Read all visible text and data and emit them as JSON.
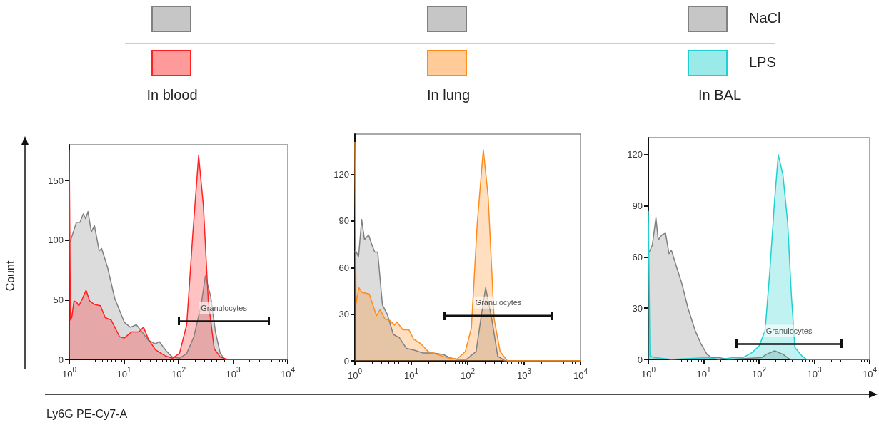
{
  "chart_data": [
    {
      "type": "area",
      "title": "In blood",
      "ylabel": "Count",
      "xlabel": "Ly6G PE-Cy7-A",
      "log": "x",
      "marker": "none",
      "legend": "top",
      "xlim": [
        1,
        10000
      ],
      "xticks": [
        {
          "value": 1,
          "label": "10$^{0}$"
        },
        {
          "value": 10,
          "label": "10$^{1}$"
        },
        {
          "value": 100,
          "label": "10$^{2}$"
        },
        {
          "value": 1000,
          "label": "10$^{3}$"
        },
        {
          "value": 10000,
          "label": "10$^{4}$"
        }
      ],
      "ylim": [
        0,
        180
      ],
      "yticks": [
        0,
        50,
        100,
        150
      ],
      "annotations": [
        "Granulocytes"
      ],
      "series": [
        {
          "color": "#808080",
          "x": [
            1,
            1.08,
            1.35,
            1.57,
            1.8,
            1.99,
            2.2,
            2.53,
            2.89,
            3.53,
            3.91,
            5.03,
            6.81,
            10.2,
            13.1,
            16.9,
            20.7,
            28,
            37.9,
            44.1,
            59.7,
            76.9,
            104,
            141,
            191,
            258,
            310,
            387,
            474,
            580,
            709,
            10000
          ],
          "values": [
            98,
            101,
            115,
            115,
            122,
            118,
            124,
            107,
            112,
            91,
            93,
            77,
            51,
            31,
            27,
            29,
            24,
            16,
            13,
            15,
            7,
            2,
            1,
            5,
            19,
            45,
            70,
            53,
            23,
            5,
            0,
            0
          ]
        },
        {
          "type": "line",
          "color": "#111111",
          "x": [
            102,
            4500
          ],
          "values": [
            32,
            32
          ]
        },
        {
          "color": "#ff2020",
          "x": [
            1,
            1.05,
            1.11,
            1.22,
            1.35,
            1.5,
            1.74,
            2.03,
            2.36,
            2.89,
            3.71,
            4.55,
            5.85,
            8.33,
            10.2,
            13.8,
            18.7,
            22.9,
            28,
            37.9,
            56.9,
            76.9,
            104,
            141,
            181,
            233,
            285,
            350,
            450,
            580,
            785,
            10000
          ],
          "values": [
            176,
            33,
            35,
            49,
            48,
            45,
            51,
            58,
            49,
            46,
            45,
            35,
            33,
            19,
            18,
            23,
            23,
            27,
            17,
            8,
            3,
            1,
            5,
            29,
            103,
            171,
            129,
            49,
            9,
            2,
            0,
            0
          ]
        }
      ]
    },
    {
      "type": "area",
      "title": "In lung",
      "log": "x",
      "marker": "none",
      "legend": "top",
      "xlim": [
        1,
        10000
      ],
      "xticks": [
        {
          "value": 1,
          "label": "10$^{0}$"
        },
        {
          "value": 10,
          "label": "10$^{1}$"
        },
        {
          "value": 100,
          "label": "10$^{2}$"
        },
        {
          "value": 1000,
          "label": "10$^{3}$"
        },
        {
          "value": 10000,
          "label": "10$^{4}$"
        }
      ],
      "ylim": [
        0,
        146
      ],
      "yticks": [
        0,
        30,
        60,
        90,
        120
      ],
      "annotations": [
        "Granulocytes"
      ],
      "series": [
        {
          "color": "#808080",
          "x": [
            1,
            1.03,
            1.16,
            1.32,
            1.48,
            1.75,
            1.99,
            2.25,
            2.54,
            3.08,
            3.75,
            4.8,
            6.12,
            8.22,
            11,
            16.3,
            24.2,
            37.5,
            48,
            64.4,
            95.2,
            141,
            171,
            208,
            267,
            340,
            457,
            10000
          ],
          "values": [
            70,
            71,
            67,
            91,
            78,
            81,
            75,
            70,
            70,
            36,
            30,
            17,
            15,
            8,
            7,
            5,
            5,
            4,
            2,
            1,
            1,
            6,
            27,
            47,
            27,
            3,
            0,
            0
          ]
        },
        {
          "type": "line",
          "color": "#111111",
          "x": [
            39,
            3150
          ],
          "values": [
            29,
            29
          ]
        },
        {
          "color": "#ff8c1a",
          "x": [
            1,
            1.05,
            1.18,
            1.34,
            1.8,
            2.08,
            2.41,
            2.8,
            3.4,
            4.14,
            5.03,
            5.56,
            7.1,
            9.06,
            11,
            14.8,
            19.9,
            29.4,
            43.5,
            64.4,
            90.6,
            116,
            148,
            189,
            230,
            294,
            375,
            504,
            10000
          ],
          "values": [
            141,
            37,
            47,
            44,
            43,
            36,
            29,
            33,
            27,
            26,
            23,
            25,
            20,
            20,
            14,
            11,
            6,
            4,
            2,
            1,
            6,
            21,
            89,
            136,
            106,
            27,
            6,
            0,
            0
          ]
        }
      ]
    },
    {
      "type": "area",
      "title": "In BAL",
      "log": "x",
      "marker": "none",
      "legend": "top",
      "xlim": [
        1,
        10000
      ],
      "xticks": [
        {
          "value": 1,
          "label": "10$^{0}$"
        },
        {
          "value": 10,
          "label": "10$^{1}$"
        },
        {
          "value": 100,
          "label": "10$^{2}$"
        },
        {
          "value": 1000,
          "label": "10$^{3}$"
        },
        {
          "value": 10000,
          "label": "10$^{4}$"
        }
      ],
      "ylim": [
        0,
        130
      ],
      "yticks": [
        0,
        30,
        60,
        90,
        120
      ],
      "annotations": [
        "Granulocytes"
      ],
      "series": [
        {
          "name": "NaCl",
          "color": "#808080",
          "x": [
            1,
            1.04,
            1.18,
            1.37,
            1.51,
            1.76,
            2.04,
            2.36,
            2.61,
            3.18,
            4.07,
            5.21,
            7,
            8.97,
            11.5,
            14,
            18.8,
            27.9,
            111,
            136,
            192,
            271,
            365,
            445,
            10000
          ],
          "values": [
            63,
            63,
            67,
            83,
            70,
            73,
            74,
            62,
            64,
            55,
            44,
            30,
            17,
            9,
            3,
            1,
            1,
            0,
            1,
            3,
            5,
            3,
            0,
            0,
            0
          ]
        },
        {
          "type": "line",
          "color": "#111111",
          "x": [
            39,
            3120
          ],
          "values": [
            9,
            9
          ]
        },
        {
          "name": "LPS",
          "color": "#20d0d0",
          "x": [
            1,
            1.07,
            1.31,
            2.61,
            11.5,
            18.8,
            34,
            50.6,
            75.2,
            101,
            129,
            157,
            192,
            223,
            271,
            330,
            384,
            445,
            598,
            730,
            10000
          ],
          "values": [
            87,
            2,
            1,
            0,
            1,
            0,
            1,
            1,
            4,
            8,
            17,
            52,
            94,
            120,
            108,
            80,
            38,
            7,
            2,
            0,
            0
          ]
        }
      ]
    }
  ]
}
